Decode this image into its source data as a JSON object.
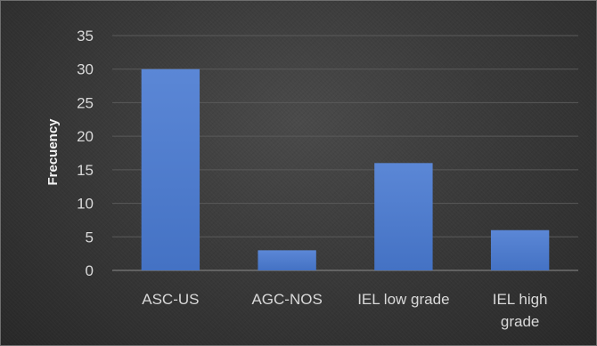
{
  "chart_data": {
    "type": "bar",
    "categories": [
      "ASC-US",
      "AGC-NOS",
      "IEL low grade",
      "IEL high grade"
    ],
    "category_lines": [
      [
        "ASC-US"
      ],
      [
        "AGC-NOS"
      ],
      [
        "IEL low grade"
      ],
      [
        "IEL high",
        "grade"
      ]
    ],
    "values": [
      30,
      3,
      16,
      6
    ],
    "title": "",
    "xlabel": "",
    "ylabel": "Frecuency",
    "ylim": [
      0,
      35
    ],
    "yticks": [
      0,
      5,
      10,
      15,
      20,
      25,
      30,
      35
    ],
    "grid": true,
    "legend": "none",
    "colors": {
      "bar": "#4472c4",
      "bar_light": "#5b87d6",
      "background": "#3a3a3a",
      "text": "#d9d9d9"
    }
  }
}
